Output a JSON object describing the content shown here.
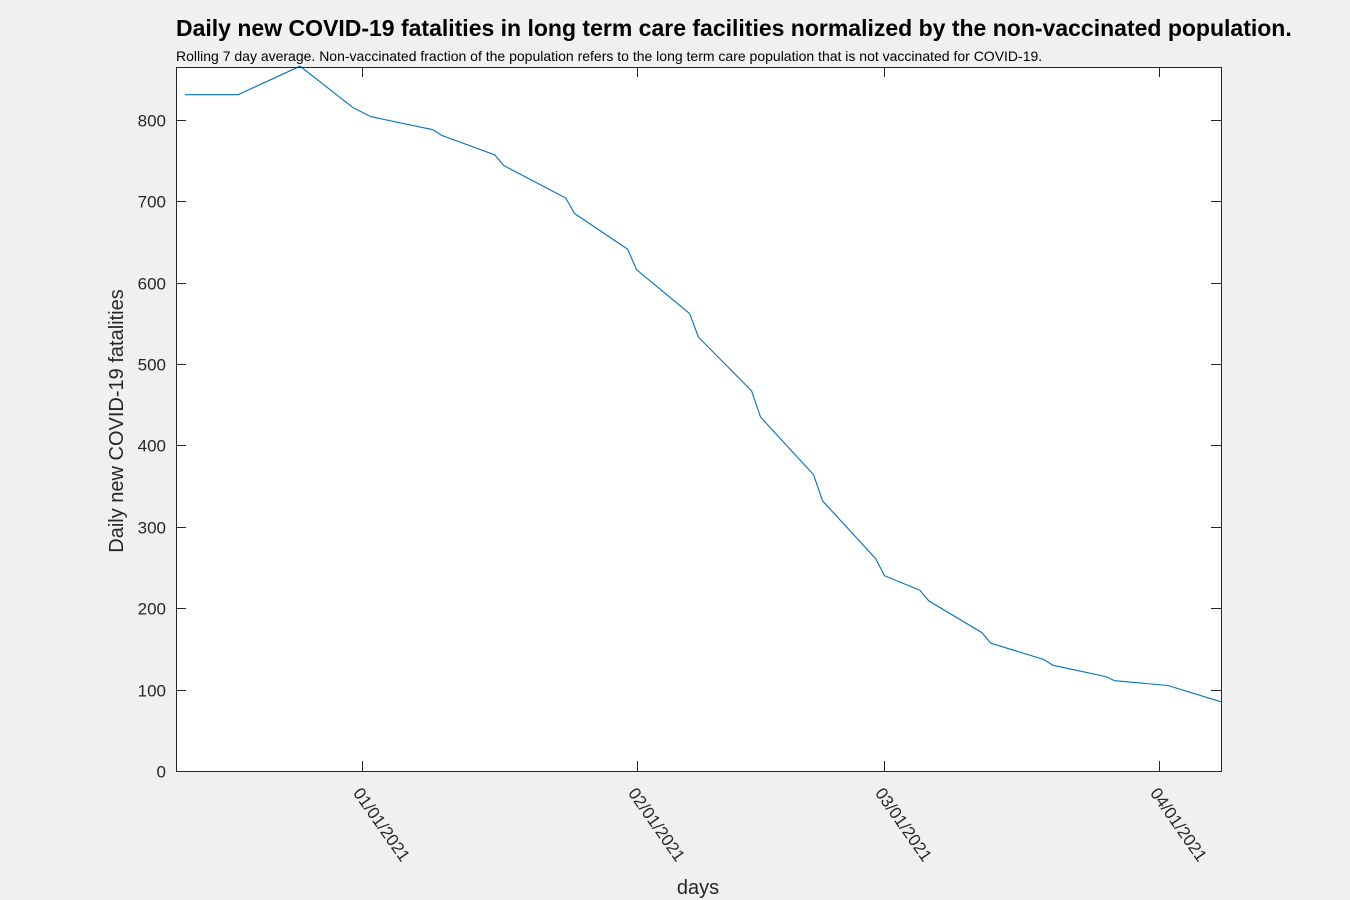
{
  "chart_data": {
    "type": "line",
    "title": "Daily new COVID-19 fatalities in long term care facilities normalized by the non-vaccinated population.",
    "subtitle": "Rolling 7 day average. Non-vaccinated fraction of the population refers to the long term care population that is not vaccinated for COVID-19.",
    "xlabel": "days",
    "ylabel": "Daily new COVID-19 fatalities",
    "xlim": [
      "2020-12-11",
      "2021-04-08"
    ],
    "ylim": [
      0,
      865
    ],
    "yticks": [
      0,
      100,
      200,
      300,
      400,
      500,
      600,
      700,
      800
    ],
    "xticks": [
      {
        "date": "2021-01-01",
        "label": "01/01/2021"
      },
      {
        "date": "2021-02-01",
        "label": "02/01/2021"
      },
      {
        "date": "2021-03-01",
        "label": "03/01/2021"
      },
      {
        "date": "2021-04-01",
        "label": "04/01/2021"
      }
    ],
    "grid": false,
    "line_color": "#0072bd",
    "series": [
      {
        "points": [
          [
            "2020-12-12",
            831
          ],
          [
            "2020-12-18",
            831
          ],
          [
            "2020-12-25",
            866
          ],
          [
            "2020-12-31",
            815
          ],
          [
            "2021-01-02",
            804
          ],
          [
            "2021-01-09",
            788
          ],
          [
            "2021-01-10",
            781
          ],
          [
            "2021-01-16",
            757
          ],
          [
            "2021-01-17",
            744
          ],
          [
            "2021-01-24",
            704
          ],
          [
            "2021-01-25",
            685
          ],
          [
            "2021-01-31",
            641
          ],
          [
            "2021-02-01",
            616
          ],
          [
            "2021-02-07",
            562
          ],
          [
            "2021-02-08",
            533
          ],
          [
            "2021-02-14",
            467
          ],
          [
            "2021-02-15",
            435
          ],
          [
            "2021-02-21",
            364
          ],
          [
            "2021-02-22",
            332
          ],
          [
            "2021-02-28",
            261
          ],
          [
            "2021-03-01",
            240
          ],
          [
            "2021-03-05",
            222
          ],
          [
            "2021-03-06",
            209
          ],
          [
            "2021-03-12",
            170
          ],
          [
            "2021-03-13",
            157
          ],
          [
            "2021-03-19",
            137
          ],
          [
            "2021-03-20",
            130
          ],
          [
            "2021-03-26",
            116
          ],
          [
            "2021-03-27",
            111
          ],
          [
            "2021-04-02",
            105
          ],
          [
            "2021-04-08",
            85
          ]
        ]
      }
    ]
  }
}
